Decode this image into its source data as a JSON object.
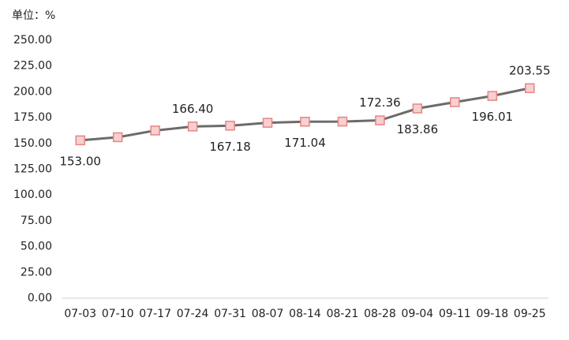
{
  "chart_data": {
    "type": "line",
    "unit_label": "单位：%",
    "categories": [
      "07-03",
      "07-10",
      "07-17",
      "07-24",
      "07-31",
      "08-07",
      "08-14",
      "08-21",
      "08-28",
      "09-04",
      "09-11",
      "09-18",
      "09-25"
    ],
    "series": [
      {
        "color": "#6e6a6a",
        "marker_fill": "#f9cfcf",
        "marker_stroke": "#e58585",
        "values": [
          153.0,
          156.0,
          162.5,
          166.4,
          167.18,
          170.0,
          171.04,
          171.2,
          172.36,
          183.86,
          190.0,
          196.01,
          203.55
        ],
        "value_labels": [
          "153.00",
          null,
          null,
          "166.40",
          "167.18",
          null,
          "171.04",
          null,
          "172.36",
          "183.86",
          null,
          "196.01",
          "203.55"
        ]
      }
    ],
    "ylim": [
      0,
      250
    ],
    "yticks": [
      {
        "value": 0,
        "label": "0.00"
      },
      {
        "value": 25,
        "label": "25.00"
      },
      {
        "value": 50,
        "label": "50.00"
      },
      {
        "value": 75,
        "label": "75.00"
      },
      {
        "value": 100,
        "label": "100.00"
      },
      {
        "value": 125,
        "label": "125.00"
      },
      {
        "value": 150,
        "label": "150.00"
      },
      {
        "value": 175,
        "label": "175.00"
      },
      {
        "value": 200,
        "label": "200.00"
      },
      {
        "value": 225,
        "label": "225.00"
      },
      {
        "value": 250,
        "label": "250.00"
      }
    ],
    "grid": false
  }
}
